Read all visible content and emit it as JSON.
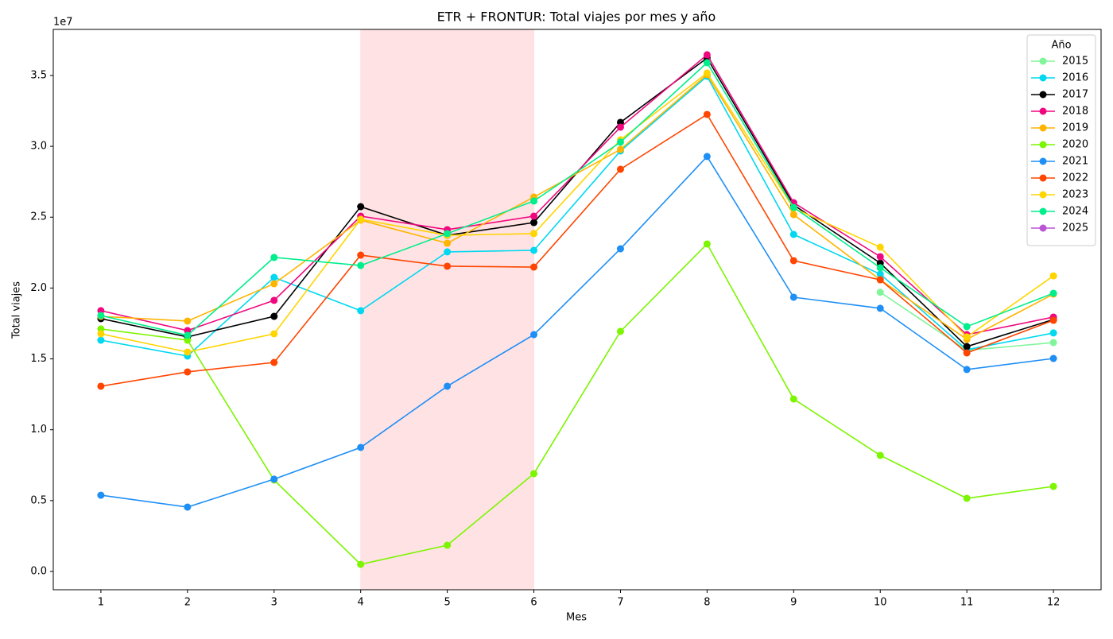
{
  "chart_data": {
    "type": "line",
    "title": "ETR + FRONTUR: Total viajes por mes y año",
    "xlabel": "Mes",
    "ylabel": "Total viajes",
    "y_offset_label": "1e7",
    "x": [
      1,
      2,
      3,
      4,
      5,
      6,
      7,
      8,
      9,
      10,
      11,
      12
    ],
    "xlim": [
      0.45,
      12.55
    ],
    "xticks": [
      1,
      2,
      3,
      4,
      5,
      6,
      7,
      8,
      9,
      10,
      11,
      12
    ],
    "ylim": [
      -0.129,
      3.825
    ],
    "yticks": [
      {
        "value": 0,
        "label": "0.0"
      },
      0.5,
      {
        "value": 1,
        "label": "1.0"
      },
      1.5,
      {
        "value": 2,
        "label": "2.0"
      },
      2.5,
      {
        "value": 3,
        "label": "3.0"
      },
      3.5
    ],
    "shaded_x": [
      4,
      6
    ],
    "shade_color": "#ffc0c4",
    "legend_title": "Año",
    "legend": "upper right",
    "series": [
      {
        "name": "2015",
        "color": "#80f59a",
        "values": [
          null,
          null,
          null,
          null,
          null,
          null,
          null,
          null,
          null,
          1.97,
          1.56,
          1.615
        ]
      },
      {
        "name": "2016",
        "color": "#00d8f0",
        "values": [
          1.632,
          1.52,
          2.075,
          1.84,
          2.255,
          2.266,
          2.967,
          3.494,
          2.378,
          2.098,
          1.565,
          1.683
        ]
      },
      {
        "name": "2017",
        "color": "#000000",
        "values": [
          1.784,
          1.655,
          1.8,
          2.574,
          2.372,
          2.462,
          3.169,
          3.623,
          2.586,
          2.176,
          1.587,
          1.778
        ]
      },
      {
        "name": "2018",
        "color": "#f0077f",
        "values": [
          1.84,
          1.7,
          1.913,
          2.507,
          2.412,
          2.507,
          3.135,
          3.646,
          2.602,
          2.221,
          1.671,
          1.795
        ]
      },
      {
        "name": "2019",
        "color": "#ffb400",
        "values": [
          1.8,
          1.767,
          2.03,
          2.479,
          2.316,
          2.642,
          2.978,
          3.506,
          2.518,
          2.058,
          1.638,
          1.957
        ]
      },
      {
        "name": "2020",
        "color": "#7cf500",
        "values": [
          1.711,
          1.632,
          0.645,
          0.05,
          0.185,
          0.69,
          1.694,
          2.311,
          1.217,
          0.819,
          0.516,
          0.6
        ]
      },
      {
        "name": "2021",
        "color": "#1e8ff5",
        "values": [
          0.538,
          0.454,
          0.651,
          0.875,
          1.307,
          1.671,
          2.277,
          2.928,
          1.935,
          1.857,
          1.425,
          1.503
        ]
      },
      {
        "name": "2022",
        "color": "#ff4500",
        "values": [
          1.307,
          1.408,
          1.475,
          2.232,
          2.154,
          2.148,
          2.838,
          3.225,
          2.193,
          2.058,
          1.542,
          1.772
        ]
      },
      {
        "name": "2023",
        "color": "#ffd500",
        "values": [
          1.677,
          1.548,
          1.677,
          2.485,
          2.372,
          2.384,
          3.046,
          3.517,
          2.563,
          2.288,
          1.655,
          2.086
        ]
      },
      {
        "name": "2024",
        "color": "#00ee8c",
        "values": [
          1.806,
          1.666,
          2.216,
          2.159,
          2.384,
          2.614,
          3.029,
          3.59,
          2.569,
          2.143,
          1.728,
          1.963
        ]
      },
      {
        "name": "2025",
        "color": "#ba55d3",
        "values": [
          null,
          null,
          null,
          null,
          null,
          null,
          null,
          null,
          null,
          null,
          null,
          null
        ]
      }
    ]
  }
}
